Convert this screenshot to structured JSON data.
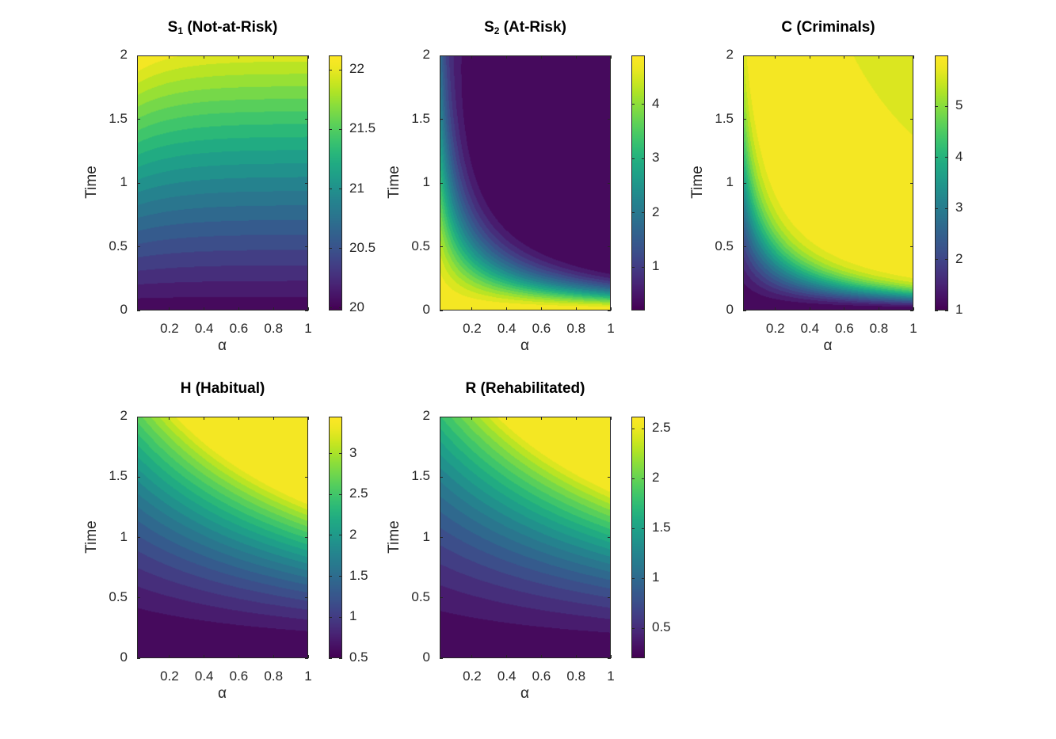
{
  "chart_data": [
    {
      "type": "heatmap",
      "title_main": "S",
      "title_sub": "1",
      "title_rest": " (Not-at-Risk)",
      "xlabel": "α",
      "ylabel": "Time",
      "xlim": [
        0.013,
        1
      ],
      "ylim": [
        0,
        2
      ],
      "xticks": [
        "0.2",
        "0.4",
        "0.6",
        "0.8",
        "1"
      ],
      "xtick_values": [
        0.2,
        0.4,
        0.6,
        0.8,
        1
      ],
      "yticks": [
        "0",
        "0.5",
        "1",
        "1.5",
        "2"
      ],
      "ytick_values": [
        0,
        0.5,
        1,
        1.5,
        2
      ],
      "clim": [
        19.98,
        22.12
      ],
      "cbar_ticks": [
        "20",
        "20.5",
        "21",
        "21.5",
        "22"
      ],
      "cbar_tick_values": [
        20,
        20.5,
        21,
        21.5,
        22
      ],
      "model": "s1"
    },
    {
      "type": "heatmap",
      "title_main": "S",
      "title_sub": "2",
      "title_rest": " (At-Risk)",
      "xlabel": "α",
      "ylabel": "Time",
      "xlim": [
        0.013,
        1
      ],
      "ylim": [
        0,
        2
      ],
      "xticks": [
        "0.2",
        "0.4",
        "0.6",
        "0.8",
        "1"
      ],
      "xtick_values": [
        0.2,
        0.4,
        0.6,
        0.8,
        1
      ],
      "yticks": [
        "0",
        "0.5",
        "1",
        "1.5",
        "2"
      ],
      "ytick_values": [
        0,
        0.5,
        1,
        1.5,
        2
      ],
      "clim": [
        0.2,
        4.9
      ],
      "cbar_ticks": [
        "1",
        "2",
        "3",
        "4"
      ],
      "cbar_tick_values": [
        1,
        2,
        3,
        4
      ],
      "model": "s2"
    },
    {
      "type": "heatmap",
      "title_main": "C (Criminals)",
      "title_sub": "",
      "title_rest": "",
      "xlabel": "α",
      "ylabel": "Time",
      "xlim": [
        0.013,
        1
      ],
      "ylim": [
        0,
        2
      ],
      "xticks": [
        "0.2",
        "0.4",
        "0.6",
        "0.8",
        "1"
      ],
      "xtick_values": [
        0.2,
        0.4,
        0.6,
        0.8,
        1
      ],
      "yticks": [
        "0",
        "0.5",
        "1",
        "1.5",
        "2"
      ],
      "ytick_values": [
        0,
        0.5,
        1,
        1.5,
        2
      ],
      "clim": [
        1,
        6
      ],
      "cbar_ticks": [
        "1",
        "2",
        "3",
        "4",
        "5"
      ],
      "cbar_tick_values": [
        1,
        2,
        3,
        4,
        5
      ],
      "model": "c"
    },
    {
      "type": "heatmap",
      "title_main": "H (Habitual)",
      "title_sub": "",
      "title_rest": "",
      "xlabel": "α",
      "ylabel": "Time",
      "xlim": [
        0.013,
        1
      ],
      "ylim": [
        0,
        2
      ],
      "xticks": [
        "0.2",
        "0.4",
        "0.6",
        "0.8",
        "1"
      ],
      "xtick_values": [
        0.2,
        0.4,
        0.6,
        0.8,
        1
      ],
      "yticks": [
        "0",
        "0.5",
        "1",
        "1.5",
        "2"
      ],
      "ytick_values": [
        0,
        0.5,
        1,
        1.5,
        2
      ],
      "clim": [
        0.5,
        3.45
      ],
      "cbar_ticks": [
        "0.5",
        "1",
        "1.5",
        "2",
        "2.5",
        "3"
      ],
      "cbar_tick_values": [
        0.5,
        1,
        1.5,
        2,
        2.5,
        3
      ],
      "model": "h"
    },
    {
      "type": "heatmap",
      "title_main": "R (Rehabilitated)",
      "title_sub": "",
      "title_rest": "",
      "xlabel": "α",
      "ylabel": "Time",
      "xlim": [
        0.013,
        1
      ],
      "ylim": [
        0,
        2
      ],
      "xticks": [
        "0.2",
        "0.4",
        "0.6",
        "0.8",
        "1"
      ],
      "xtick_values": [
        0.2,
        0.4,
        0.6,
        0.8,
        1
      ],
      "yticks": [
        "0",
        "0.5",
        "1",
        "1.5",
        "2"
      ],
      "ytick_values": [
        0,
        0.5,
        1,
        1.5,
        2
      ],
      "clim": [
        0.2,
        2.62
      ],
      "cbar_ticks": [
        "0.5",
        "1",
        "1.5",
        "2",
        "2.5"
      ],
      "cbar_tick_values": [
        0.5,
        1,
        1.5,
        2,
        2.5
      ],
      "model": "r"
    }
  ]
}
